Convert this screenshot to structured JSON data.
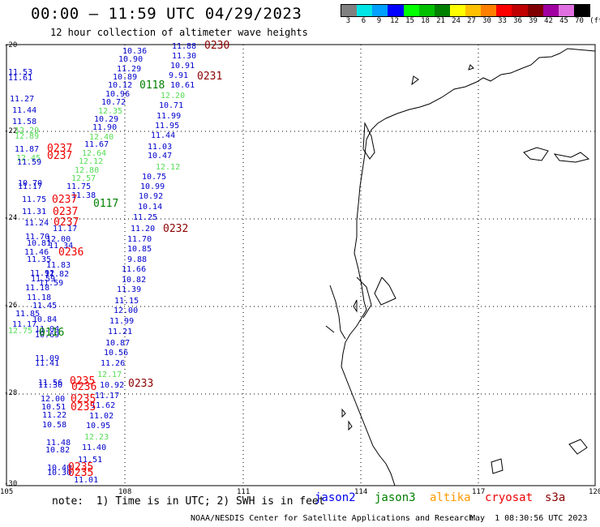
{
  "header": {
    "title": "00:00 – 11:59 UTC 04/29/2023",
    "subtitle": "12 hour collection of altimeter wave heights"
  },
  "legend": {
    "unit": "(ft)",
    "bins": [
      {
        "label": "3",
        "color": "#808080"
      },
      {
        "label": "6",
        "color": "#00e5e5"
      },
      {
        "label": "9",
        "color": "#00a0ff"
      },
      {
        "label": "12",
        "color": "#0000ff"
      },
      {
        "label": "15",
        "color": "#00ff00"
      },
      {
        "label": "18",
        "color": "#00c000"
      },
      {
        "label": "21",
        "color": "#008000"
      },
      {
        "label": "24",
        "color": "#ffff00"
      },
      {
        "label": "27",
        "color": "#ffc000"
      },
      {
        "label": "30",
        "color": "#ff8000"
      },
      {
        "label": "33",
        "color": "#ff0000"
      },
      {
        "label": "36",
        "color": "#c00000"
      },
      {
        "label": "39",
        "color": "#800000"
      },
      {
        "label": "42",
        "color": "#a000a0"
      },
      {
        "label": "45",
        "color": "#e070e0"
      },
      {
        "label": "70",
        "color": "#000000"
      }
    ]
  },
  "axes": {
    "lat_labels": [
      "-20",
      "-22",
      "-24",
      "-26",
      "-28",
      "-30"
    ],
    "lon_labels": [
      "105",
      "108",
      "111",
      "114",
      "117",
      "120"
    ]
  },
  "observations": [
    {
      "v": "10.36",
      "c": "#0000cc"
    },
    {
      "v": "11.88",
      "c": "#0000cc"
    },
    {
      "v": "10.90",
      "c": "#0000cc"
    },
    {
      "v": "11.30",
      "c": "#0000cc"
    },
    {
      "v": "11.29",
      "c": "#0000cc"
    },
    {
      "v": "10.91",
      "c": "#0000cc"
    },
    {
      "v": "10.89",
      "c": "#0000cc"
    },
    {
      "v": "9.91",
      "c": "#0000cc"
    },
    {
      "v": "10.12",
      "c": "#0000cc"
    },
    {
      "v": "10.61",
      "c": "#0000cc"
    },
    {
      "v": "10.96",
      "c": "#0000cc"
    },
    {
      "v": "12.20",
      "c": "#55dd55"
    },
    {
      "v": "10.72",
      "c": "#0000cc"
    },
    {
      "v": "10.71",
      "c": "#0000cc"
    },
    {
      "v": "12.35",
      "c": "#55dd55"
    },
    {
      "v": "10.29",
      "c": "#0000cc"
    },
    {
      "v": "11.99",
      "c": "#0000cc"
    },
    {
      "v": "11.90",
      "c": "#0000cc"
    },
    {
      "v": "11.95",
      "c": "#0000cc"
    },
    {
      "v": "12.40",
      "c": "#55dd55"
    },
    {
      "v": "11.44",
      "c": "#0000cc"
    },
    {
      "v": "11.67",
      "c": "#0000cc"
    },
    {
      "v": "11.03",
      "c": "#0000cc"
    },
    {
      "v": "12.64",
      "c": "#55dd55"
    },
    {
      "v": "10.47",
      "c": "#0000cc"
    },
    {
      "v": "12.12",
      "c": "#55dd55"
    },
    {
      "v": "12.12",
      "c": "#55dd55"
    },
    {
      "v": "12.80",
      "c": "#55dd55"
    },
    {
      "v": "10.75",
      "c": "#0000cc"
    },
    {
      "v": "12.57",
      "c": "#55dd55"
    },
    {
      "v": "10.99",
      "c": "#0000cc"
    },
    {
      "v": "11.75",
      "c": "#0000cc"
    },
    {
      "v": "10.92",
      "c": "#0000cc"
    },
    {
      "v": "11.38",
      "c": "#0000cc"
    },
    {
      "v": "10.14",
      "c": "#0000cc"
    },
    {
      "v": "11.25",
      "c": "#0000cc"
    },
    {
      "v": "11.17",
      "c": "#0000cc"
    },
    {
      "v": "11.20",
      "c": "#0000cc"
    },
    {
      "v": "12.00",
      "c": "#0000cc"
    },
    {
      "v": "11.70",
      "c": "#0000cc"
    },
    {
      "v": "11.34",
      "c": "#0000cc"
    },
    {
      "v": "10.85",
      "c": "#0000cc"
    },
    {
      "v": "9.88",
      "c": "#0000cc"
    },
    {
      "v": "11.83",
      "c": "#0000cc"
    },
    {
      "v": "11.66",
      "c": "#0000cc"
    },
    {
      "v": "11.82",
      "c": "#0000cc"
    },
    {
      "v": "10.82",
      "c": "#0000cc"
    },
    {
      "v": "11.59",
      "c": "#0000cc"
    },
    {
      "v": "11.39",
      "c": "#0000cc"
    },
    {
      "v": "11.15",
      "c": "#0000cc"
    },
    {
      "v": "12.00",
      "c": "#0000cc"
    },
    {
      "v": "11.99",
      "c": "#0000cc"
    },
    {
      "v": "11.21",
      "c": "#0000cc"
    },
    {
      "v": "10.87",
      "c": "#0000cc"
    },
    {
      "v": "10.56",
      "c": "#0000cc"
    },
    {
      "v": "11.26",
      "c": "#0000cc"
    },
    {
      "v": "12.17",
      "c": "#55dd55"
    },
    {
      "v": "10.92",
      "c": "#0000cc"
    },
    {
      "v": "11.17",
      "c": "#0000cc"
    },
    {
      "v": "11.62",
      "c": "#0000cc"
    },
    {
      "v": "11.02",
      "c": "#0000cc"
    },
    {
      "v": "10.95",
      "c": "#0000cc"
    },
    {
      "v": "12.23",
      "c": "#55dd55"
    },
    {
      "v": "11.40",
      "c": "#0000cc"
    },
    {
      "v": "11.51",
      "c": "#0000cc"
    },
    {
      "v": "11.01",
      "c": "#0000cc"
    },
    {
      "v": "11.53",
      "c": "#0000cc"
    },
    {
      "v": "11.61",
      "c": "#0000cc"
    },
    {
      "v": "11.27",
      "c": "#0000cc"
    },
    {
      "v": "11.44",
      "c": "#0000cc"
    },
    {
      "v": "11.58",
      "c": "#0000cc"
    },
    {
      "v": "12.29",
      "c": "#55dd55"
    },
    {
      "v": "12.89",
      "c": "#55dd55"
    },
    {
      "v": "11.87",
      "c": "#0000cc"
    },
    {
      "v": "12.45",
      "c": "#55dd55"
    },
    {
      "v": "11.59",
      "c": "#0000cc"
    },
    {
      "v": "10.70",
      "c": "#0000cc"
    },
    {
      "v": "11.17",
      "c": "#0000cc"
    },
    {
      "v": "11.75",
      "c": "#0000cc"
    },
    {
      "v": "11.31",
      "c": "#0000cc"
    },
    {
      "v": "11.24",
      "c": "#0000cc"
    },
    {
      "v": "11.70",
      "c": "#0000cc"
    },
    {
      "v": "10.81",
      "c": "#0000cc"
    },
    {
      "v": "11.46",
      "c": "#0000cc"
    },
    {
      "v": "11.35",
      "c": "#0000cc"
    },
    {
      "v": "11.92",
      "c": "#0000cc"
    },
    {
      "v": "11.59",
      "c": "#0000cc"
    },
    {
      "v": "11.18",
      "c": "#0000cc"
    },
    {
      "v": "11.18",
      "c": "#0000cc"
    },
    {
      "v": "11.45",
      "c": "#0000cc"
    },
    {
      "v": "11.85",
      "c": "#0000cc"
    },
    {
      "v": "10.84",
      "c": "#0000cc"
    },
    {
      "v": "11.17",
      "c": "#0000cc"
    },
    {
      "v": "11.04",
      "c": "#0000cc"
    },
    {
      "v": "12.75",
      "c": "#55dd55"
    },
    {
      "v": "10.69",
      "c": "#0000cc"
    },
    {
      "v": "11.09",
      "c": "#0000cc"
    },
    {
      "v": "11.41",
      "c": "#0000cc"
    },
    {
      "v": "11.56",
      "c": "#0000cc"
    },
    {
      "v": "11.30",
      "c": "#0000cc"
    },
    {
      "v": "12.00",
      "c": "#0000cc"
    },
    {
      "v": "10.51",
      "c": "#0000cc"
    },
    {
      "v": "11.22",
      "c": "#0000cc"
    },
    {
      "v": "10.58",
      "c": "#0000cc"
    },
    {
      "v": "11.48",
      "c": "#0000cc"
    },
    {
      "v": "10.82",
      "c": "#0000cc"
    },
    {
      "v": "10.40",
      "c": "#0000cc"
    },
    {
      "v": "10.30",
      "c": "#0000cc"
    }
  ],
  "passes": [
    {
      "id": "0230",
      "c": "#8b0000"
    },
    {
      "id": "0231",
      "c": "#8b0000"
    },
    {
      "id": "0118",
      "c": "#008000"
    },
    {
      "id": "0237",
      "c": "#ee0000"
    },
    {
      "id": "0237",
      "c": "#ee0000"
    },
    {
      "id": "0237",
      "c": "#ee0000"
    },
    {
      "id": "0237",
      "c": "#ee0000"
    },
    {
      "id": "0237",
      "c": "#ee0000"
    },
    {
      "id": "0117",
      "c": "#008000"
    },
    {
      "id": "0232",
      "c": "#8b0000"
    },
    {
      "id": "0236",
      "c": "#ee0000"
    },
    {
      "id": "0116",
      "c": "#008000"
    },
    {
      "id": "0235",
      "c": "#ee0000"
    },
    {
      "id": "0236",
      "c": "#ee0000"
    },
    {
      "id": "0233",
      "c": "#8b0000"
    },
    {
      "id": "0235",
      "c": "#ee0000"
    },
    {
      "id": "0235",
      "c": "#ee0000"
    },
    {
      "id": "0235",
      "c": "#ee0000"
    },
    {
      "id": "0235",
      "c": "#ee0000"
    }
  ],
  "footer": {
    "note": "note:  1) Time is in UTC; 2) SWH is in feet",
    "satellites": [
      {
        "name": "jason2",
        "color": "#0000ee"
      },
      {
        "name": "jason3",
        "color": "#008000"
      },
      {
        "name": "altika",
        "color": "#ff9900"
      },
      {
        "name": "cryosat",
        "color": "#ee0000"
      },
      {
        "name": "s3a",
        "color": "#8b0000"
      }
    ],
    "credit": "NOAA/NESDIS Center for Satellite Applications and Research",
    "timestamp": "May  1 08:30:56 UTC 2023"
  }
}
